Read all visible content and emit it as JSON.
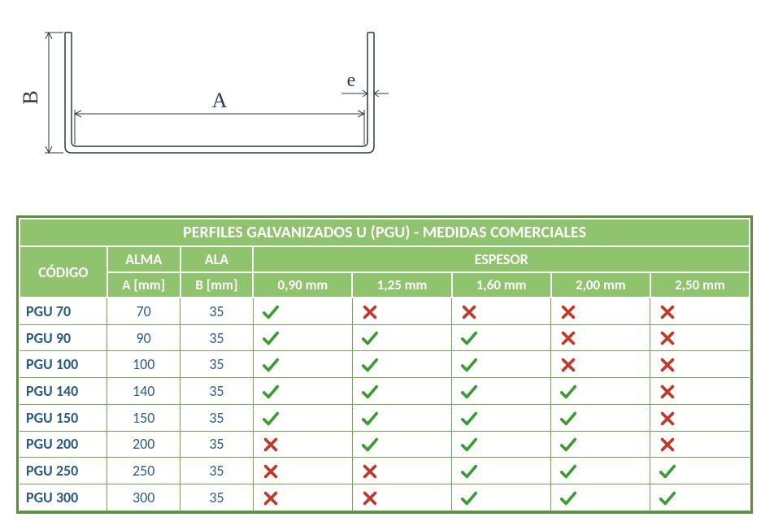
{
  "diagram": {
    "label_A": "A",
    "label_B": "B",
    "label_e": "e",
    "stroke_color": "#2d3a4a",
    "font_color": "#2d3a4a",
    "font_family": "Times New Roman"
  },
  "table": {
    "outer_border_color": "#5f8d3f",
    "header_bg": "#8fc36d",
    "header_border": "#ffffff",
    "header_text": "#ffffff",
    "row_border": "#6da94a",
    "body_text": "#2a5a88",
    "title": "PERFILES GALVANIZADOS U (PGU) - MEDIDAS COMERCIALES",
    "col_codigo": "CÓDIGO",
    "col_alma": "ALMA",
    "col_ala": "ALA",
    "col_espesor": "ESPESOR",
    "sub_alma": "A [mm]",
    "sub_ala": "B [mm]",
    "esp_headers": [
      "0,90 mm",
      "1,25 mm",
      "1,60 mm",
      "2,00 mm",
      "2,50 mm"
    ],
    "rows": [
      {
        "code": "PGU 70",
        "alma": "70",
        "ala": "35",
        "vals": [
          true,
          false,
          false,
          false,
          false
        ]
      },
      {
        "code": "PGU 90",
        "alma": "90",
        "ala": "35",
        "vals": [
          true,
          true,
          true,
          false,
          false
        ]
      },
      {
        "code": "PGU 100",
        "alma": "100",
        "ala": "35",
        "vals": [
          true,
          true,
          true,
          false,
          false
        ]
      },
      {
        "code": "PGU 140",
        "alma": "140",
        "ala": "35",
        "vals": [
          true,
          true,
          true,
          true,
          false
        ]
      },
      {
        "code": "PGU 150",
        "alma": "150",
        "ala": "35",
        "vals": [
          true,
          true,
          true,
          true,
          false
        ]
      },
      {
        "code": "PGU 200",
        "alma": "200",
        "ala": "35",
        "vals": [
          false,
          true,
          true,
          true,
          false
        ]
      },
      {
        "code": "PGU 250",
        "alma": "250",
        "ala": "35",
        "vals": [
          false,
          false,
          true,
          true,
          true
        ]
      },
      {
        "code": "PGU 300",
        "alma": "300",
        "ala": "35",
        "vals": [
          false,
          false,
          true,
          true,
          true
        ]
      }
    ],
    "check_color": "#3d9b35",
    "cross_color": "#c0392b"
  }
}
